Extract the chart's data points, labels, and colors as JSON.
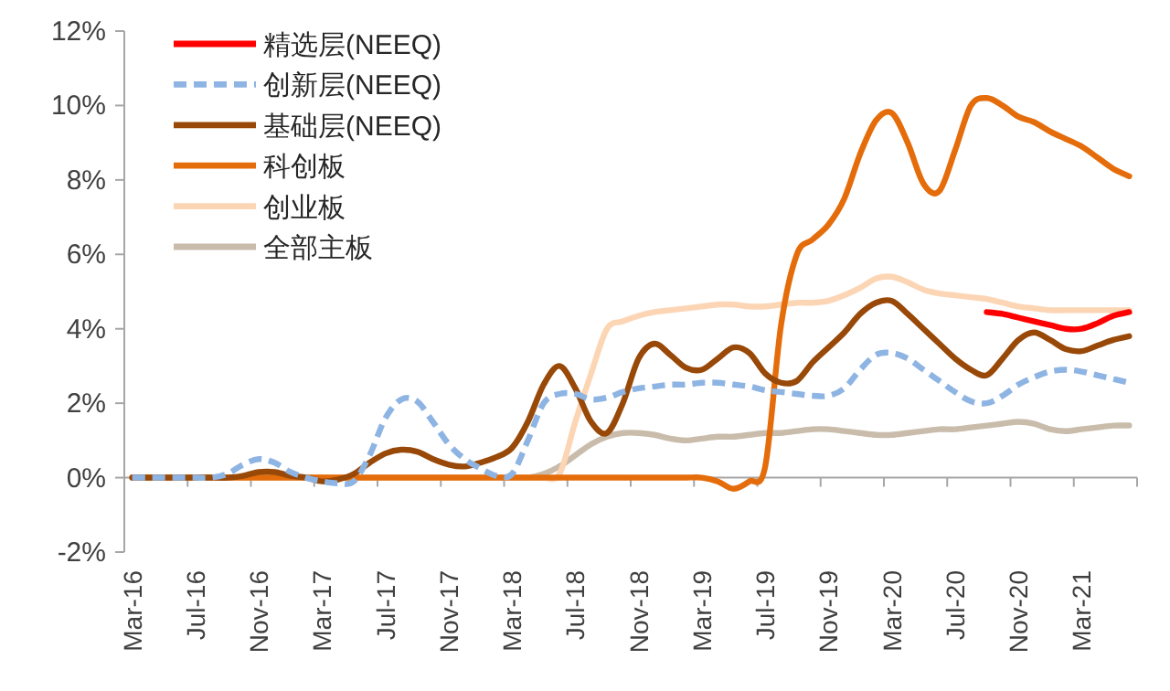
{
  "chart_data": {
    "type": "line",
    "categories": [
      "Mar-16",
      null,
      null,
      null,
      "Jul-16",
      null,
      null,
      null,
      "Nov-16",
      null,
      null,
      null,
      "Mar-17",
      null,
      null,
      null,
      "Jul-17",
      null,
      null,
      null,
      "Nov-17",
      null,
      null,
      null,
      "Mar-18",
      null,
      null,
      null,
      "Jul-18",
      null,
      null,
      null,
      "Nov-18",
      null,
      null,
      null,
      "Mar-19",
      null,
      null,
      null,
      "Jul-19",
      null,
      null,
      null,
      "Nov-19",
      null,
      null,
      null,
      "Mar-20",
      null,
      null,
      null,
      "Jul-20",
      null,
      null,
      null,
      "Nov-20",
      null,
      null,
      null,
      "Mar-21",
      null,
      null,
      null
    ],
    "series": [
      {
        "name": "精选层(NEEQ)",
        "color": "#ff0000",
        "values": [
          null,
          null,
          null,
          null,
          null,
          null,
          null,
          null,
          null,
          null,
          null,
          null,
          null,
          null,
          null,
          null,
          null,
          null,
          null,
          null,
          null,
          null,
          null,
          null,
          null,
          null,
          null,
          null,
          null,
          null,
          null,
          null,
          null,
          null,
          null,
          null,
          null,
          null,
          null,
          null,
          null,
          null,
          null,
          null,
          null,
          null,
          null,
          null,
          null,
          null,
          null,
          null,
          null,
          null,
          4.45,
          4.4,
          4.3,
          4.2,
          4.1,
          4.0,
          4.0,
          4.15,
          4.35,
          4.45
        ]
      },
      {
        "name": "创新层(NEEQ)",
        "color": "#8eb4e3",
        "line_style": "dashed",
        "values": [
          0,
          0,
          0,
          0,
          0,
          0,
          0.1,
          0.35,
          0.5,
          0.4,
          0.15,
          0,
          -0.1,
          -0.15,
          -0.1,
          0.6,
          1.6,
          2.1,
          2.05,
          1.5,
          0.9,
          0.5,
          0.25,
          0.05,
          0.1,
          1.0,
          2.0,
          2.25,
          2.25,
          2.1,
          2.15,
          2.3,
          2.4,
          2.45,
          2.5,
          2.5,
          2.55,
          2.55,
          2.5,
          2.45,
          2.35,
          2.3,
          2.25,
          2.2,
          2.2,
          2.4,
          2.9,
          3.3,
          3.35,
          3.2,
          2.9,
          2.6,
          2.3,
          2.05,
          2.0,
          2.2,
          2.5,
          2.7,
          2.85,
          2.9,
          2.85,
          2.75,
          2.65,
          2.55
        ]
      },
      {
        "name": "基础层(NEEQ)",
        "color": "#984807",
        "values": [
          0,
          0,
          0,
          0,
          0,
          0,
          0,
          0.05,
          0.15,
          0.15,
          0.05,
          0,
          -0.1,
          -0.05,
          0.1,
          0.4,
          0.65,
          0.75,
          0.7,
          0.5,
          0.35,
          0.3,
          0.4,
          0.55,
          0.8,
          1.5,
          2.5,
          3.0,
          2.4,
          1.5,
          1.2,
          2.0,
          3.2,
          3.6,
          3.3,
          2.95,
          2.9,
          3.2,
          3.5,
          3.35,
          2.8,
          2.55,
          2.6,
          3.1,
          3.5,
          3.9,
          4.4,
          4.7,
          4.75,
          4.4,
          4.0,
          3.6,
          3.2,
          2.9,
          2.75,
          3.2,
          3.7,
          3.9,
          3.7,
          3.45,
          3.4,
          3.55,
          3.7,
          3.8
        ]
      },
      {
        "name": "科创板",
        "color": "#e46c0a",
        "values": [
          0,
          0,
          0,
          0,
          0,
          0,
          0,
          0,
          0,
          0,
          0,
          0,
          0,
          0,
          0,
          0,
          0,
          0,
          0,
          0,
          0,
          0,
          0,
          0,
          0,
          0,
          0,
          0,
          0,
          0,
          0,
          0,
          0,
          0,
          0,
          0,
          0,
          -0.1,
          -0.3,
          -0.1,
          0.3,
          4.1,
          6.0,
          6.4,
          6.8,
          7.5,
          8.7,
          9.6,
          9.8,
          9.0,
          7.9,
          7.7,
          8.8,
          10.0,
          10.2,
          10.0,
          9.7,
          9.55,
          9.3,
          9.1,
          8.9,
          8.6,
          8.3,
          8.1
        ]
      },
      {
        "name": "创业板",
        "color": "#fcd5b5",
        "values": [
          0,
          0,
          0,
          0,
          0,
          0,
          0,
          0,
          0,
          0,
          0,
          0,
          0,
          0,
          0,
          0,
          0,
          0,
          0,
          0,
          0,
          0,
          0,
          0,
          0,
          0,
          0,
          0.1,
          1.5,
          2.8,
          4.0,
          4.2,
          4.35,
          4.45,
          4.5,
          4.55,
          4.6,
          4.65,
          4.65,
          4.6,
          4.6,
          4.65,
          4.7,
          4.7,
          4.75,
          4.9,
          5.1,
          5.35,
          5.4,
          5.25,
          5.05,
          4.95,
          4.9,
          4.85,
          4.8,
          4.7,
          4.6,
          4.55,
          4.5,
          4.5,
          4.5,
          4.5,
          4.5,
          4.5
        ]
      },
      {
        "name": "全部主板",
        "color": "#c9bcab",
        "values": [
          0,
          0,
          0,
          0,
          0,
          0,
          0,
          0,
          0,
          0,
          0,
          0,
          0,
          0,
          0,
          0,
          0,
          0,
          0,
          0,
          0,
          0,
          0,
          0,
          0,
          0,
          0.1,
          0.3,
          0.6,
          0.9,
          1.1,
          1.2,
          1.2,
          1.15,
          1.05,
          1.0,
          1.05,
          1.1,
          1.1,
          1.15,
          1.2,
          1.2,
          1.25,
          1.3,
          1.3,
          1.25,
          1.2,
          1.15,
          1.15,
          1.2,
          1.25,
          1.3,
          1.3,
          1.35,
          1.4,
          1.45,
          1.5,
          1.45,
          1.3,
          1.25,
          1.3,
          1.35,
          1.4,
          1.4
        ]
      }
    ],
    "ylim": [
      -2,
      12
    ],
    "yticks": [
      {
        "value": -2,
        "label": "-2%"
      },
      {
        "value": 0,
        "label": "0%"
      },
      {
        "value": 2,
        "label": "2%"
      },
      {
        "value": 4,
        "label": "4%"
      },
      {
        "value": 6,
        "label": "6%"
      },
      {
        "value": 8,
        "label": "8%"
      },
      {
        "value": 10,
        "label": "10%"
      },
      {
        "value": 12,
        "label": "12%"
      }
    ],
    "legend": "top left"
  }
}
